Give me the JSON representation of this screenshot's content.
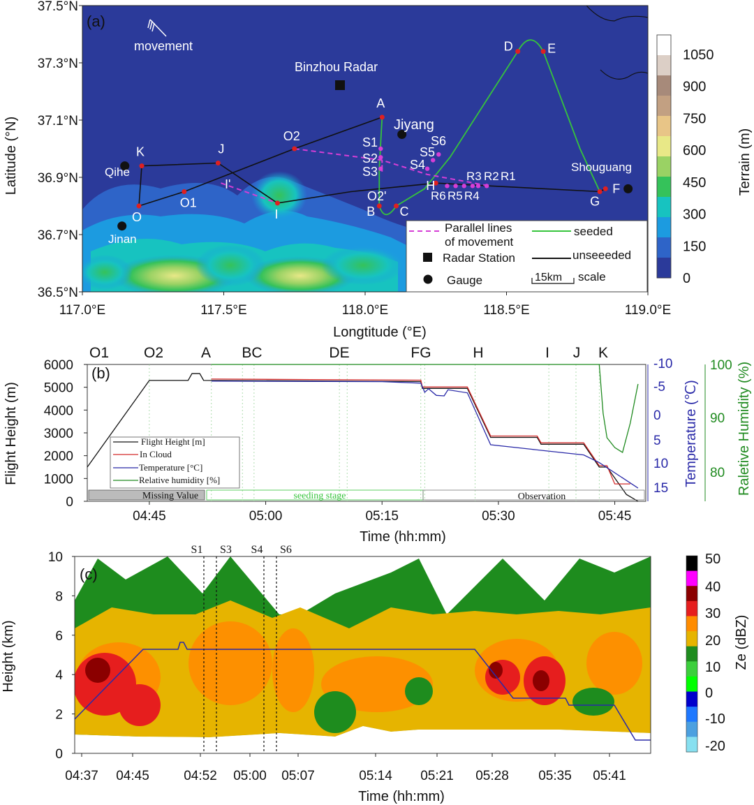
{
  "chart_data": [
    {
      "type": "map",
      "panel": "(a)",
      "xlabel": "Longtitude (°E)",
      "ylabel": "Latitude (°N)",
      "xlim": [
        117.0,
        119.0
      ],
      "ylim": [
        36.5,
        37.5
      ],
      "xticks": [
        "117.0°E",
        "117.5°E",
        "118.0°E",
        "118.5°E",
        "119.0°E"
      ],
      "yticks": [
        "36.5°N",
        "36.7°N",
        "36.9°N",
        "37.1°N",
        "37.3°N",
        "37.5°N"
      ],
      "colorbar": {
        "title": "Terrain (m)",
        "ticks": [
          "0",
          "150",
          "300",
          "450",
          "600",
          "750",
          "900",
          "1050"
        ],
        "colors": [
          "#2b3a9a",
          "#2e64c8",
          "#1c9be0",
          "#17c3c0",
          "#35c25a",
          "#9ad264",
          "#e8e887",
          "#e8c587",
          "#c2a082",
          "#a78a7a",
          "#dccfc6",
          "#ffffff"
        ]
      },
      "movement_label": "movement",
      "radar_label": "Binzhou Radar",
      "points": [
        {
          "name": "A",
          "lon": 118.06,
          "lat": 37.11
        },
        {
          "name": "B",
          "lon": 118.05,
          "lat": 36.8
        },
        {
          "name": "C",
          "lon": 118.11,
          "lat": 36.8
        },
        {
          "name": "D",
          "lon": 118.54,
          "lat": 37.34
        },
        {
          "name": "E",
          "lon": 118.63,
          "lat": 37.34
        },
        {
          "name": "F",
          "lon": 118.85,
          "lat": 36.86
        },
        {
          "name": "G",
          "lon": 118.83,
          "lat": 36.85
        },
        {
          "name": "H",
          "lon": 118.25,
          "lat": 36.88
        },
        {
          "name": "I",
          "lon": 117.69,
          "lat": 36.81
        },
        {
          "name": "J",
          "lon": 117.48,
          "lat": 36.95
        },
        {
          "name": "K",
          "lon": 117.21,
          "lat": 36.94
        },
        {
          "name": "O",
          "lon": 117.2,
          "lat": 36.8
        },
        {
          "name": "O1",
          "lon": 117.36,
          "lat": 36.85
        },
        {
          "name": "O2",
          "lon": 117.75,
          "lat": 37.0
        }
      ],
      "seeding_points": [
        "S1",
        "S2",
        "S3",
        "S4",
        "S5",
        "S6"
      ],
      "release_points": [
        "R1",
        "R2",
        "R3",
        "R4",
        "R5",
        "R6"
      ],
      "other_labels": [
        "O2'",
        "I'"
      ],
      "gauges": [
        "Qihe",
        "Jinan",
        "Jiyang",
        "Shouguang"
      ],
      "legend": {
        "parallel": "Parallel lines",
        "parallel2": "of movement",
        "seeded": "seeded",
        "unseeded": "unseeeded",
        "radar": "Radar Station",
        "gauge": "Gauge",
        "scale_value": "15km",
        "scale_word": "scale"
      },
      "colors": {
        "seeded": "#36c43c",
        "unseeded": "#111111",
        "parallel": "#d63ed6",
        "point": "#e02020"
      }
    },
    {
      "type": "line",
      "panel": "(b)",
      "xlabel": "Time (hh:mm)",
      "ylabel": "Flight Height (m)",
      "y2label": "Temperature (℃)",
      "y3label": "Raletive Humidity (%)",
      "xticks": [
        "04:45",
        "05:00",
        "05:15",
        "05:30",
        "05:45"
      ],
      "yticks": [
        "0",
        "1000",
        "2000",
        "3000",
        "4000",
        "5000",
        "6000"
      ],
      "y2ticks": [
        "-10",
        "-5",
        "0",
        "5",
        "10",
        "15"
      ],
      "y3ticks": [
        "100",
        "90",
        "80"
      ],
      "ylim": [
        0,
        6000
      ],
      "y2lim": [
        -10,
        15
      ],
      "events": [
        "O1",
        "O2",
        "A",
        "BC",
        "DE",
        "FG",
        "H",
        "I",
        "J",
        "K"
      ],
      "stages": [
        "Missing Value",
        "seeding stage",
        "Observation"
      ],
      "legend": [
        "Flight Height [m]",
        "In Cloud",
        "Temperature [°C]",
        "Relative humidity [%]"
      ],
      "series": [
        {
          "name": "Flight Height [m]",
          "color": "#111111",
          "points": [
            [
              "04:37",
              1500
            ],
            [
              "04:45",
              5300
            ],
            [
              "04:50",
              5300
            ],
            [
              "04:50.5",
              5600
            ],
            [
              "04:51.5",
              5600
            ],
            [
              "04:52",
              5300
            ],
            [
              "05:20",
              5250
            ],
            [
              "05:20.2",
              4950
            ],
            [
              "05:26",
              4950
            ],
            [
              "05:29",
              2800
            ],
            [
              "05:35",
              2800
            ],
            [
              "05:35.5",
              2500
            ],
            [
              "05:41",
              2500
            ],
            [
              "05:43",
              1500
            ],
            [
              "05:44",
              1500
            ],
            [
              "05:46.5",
              300
            ],
            [
              "05:48",
              0
            ]
          ]
        },
        {
          "name": "In Cloud",
          "color": "#d42a2a",
          "points": [
            [
              "04:53",
              5300
            ],
            [
              "05:20",
              5250
            ],
            [
              "05:20.2",
              4950
            ],
            [
              "05:26",
              4950
            ],
            [
              "05:29",
              2800
            ],
            [
              "05:35",
              2800
            ],
            [
              "05:35.5",
              2500
            ],
            [
              "05:41",
              2500
            ],
            [
              "05:43",
              1500
            ],
            [
              "05:44",
              1500
            ],
            [
              "05:45",
              700
            ],
            [
              "05:47",
              700
            ]
          ]
        },
        {
          "name": "Temperature [°C]",
          "color": "#2929a8",
          "points": [
            [
              "04:53",
              -7.0
            ],
            [
              "05:15",
              -6.9
            ],
            [
              "05:20",
              -6.6
            ],
            [
              "05:20.5",
              -4.8
            ],
            [
              "05:21",
              -5.5
            ],
            [
              "05:22",
              -4.2
            ],
            [
              "05:23",
              -4.1
            ],
            [
              "05:23.5",
              -5.3
            ],
            [
              "05:26",
              -4.7
            ],
            [
              "05:29",
              5.5
            ],
            [
              "05:35",
              6.5
            ],
            [
              "05:41",
              7.5
            ],
            [
              "05:43",
              9.0
            ],
            [
              "05:46",
              12.0
            ],
            [
              "05:48",
              14.0
            ]
          ]
        },
        {
          "name": "Relative humidity [%]",
          "color": "#1f8a1f",
          "points": [
            [
              "04:53",
              100
            ],
            [
              "05:43",
              100
            ],
            [
              "05:43.5",
              90
            ],
            [
              "05:44",
              85
            ],
            [
              "05:45",
              83
            ],
            [
              "05:46",
              82
            ],
            [
              "05:47",
              88
            ],
            [
              "05:48",
              96
            ]
          ]
        }
      ]
    },
    {
      "type": "heatmap",
      "panel": "(c)",
      "xlabel": "Time (hh:mm)",
      "ylabel": "Height (km)",
      "xticks": [
        "04:37",
        "04:45",
        "04:52",
        "05:00",
        "05:07",
        "05:14",
        "05:21",
        "05:28",
        "05:35",
        "05:41"
      ],
      "yticks": [
        "0",
        "2",
        "4",
        "6",
        "8",
        "10"
      ],
      "ylim": [
        0,
        10
      ],
      "markers": [
        "S1",
        "S3",
        "S4",
        "S6"
      ],
      "colorbar": {
        "title": "Ze (dBZ)",
        "ticks": [
          "50",
          "40",
          "30",
          "20",
          "10",
          "0",
          "-10",
          "-20"
        ],
        "colors": [
          "#000000",
          "#ff00ff",
          "#8b0000",
          "#e61e1e",
          "#ff8c00",
          "#e6b400",
          "#1e8c1e",
          "#3ccf3c",
          "#00ff00",
          "#0000cc",
          "#1e78ff",
          "#4ca0e0",
          "#87e0f0"
        ]
      },
      "flight_track_color": "#2929a8"
    }
  ]
}
